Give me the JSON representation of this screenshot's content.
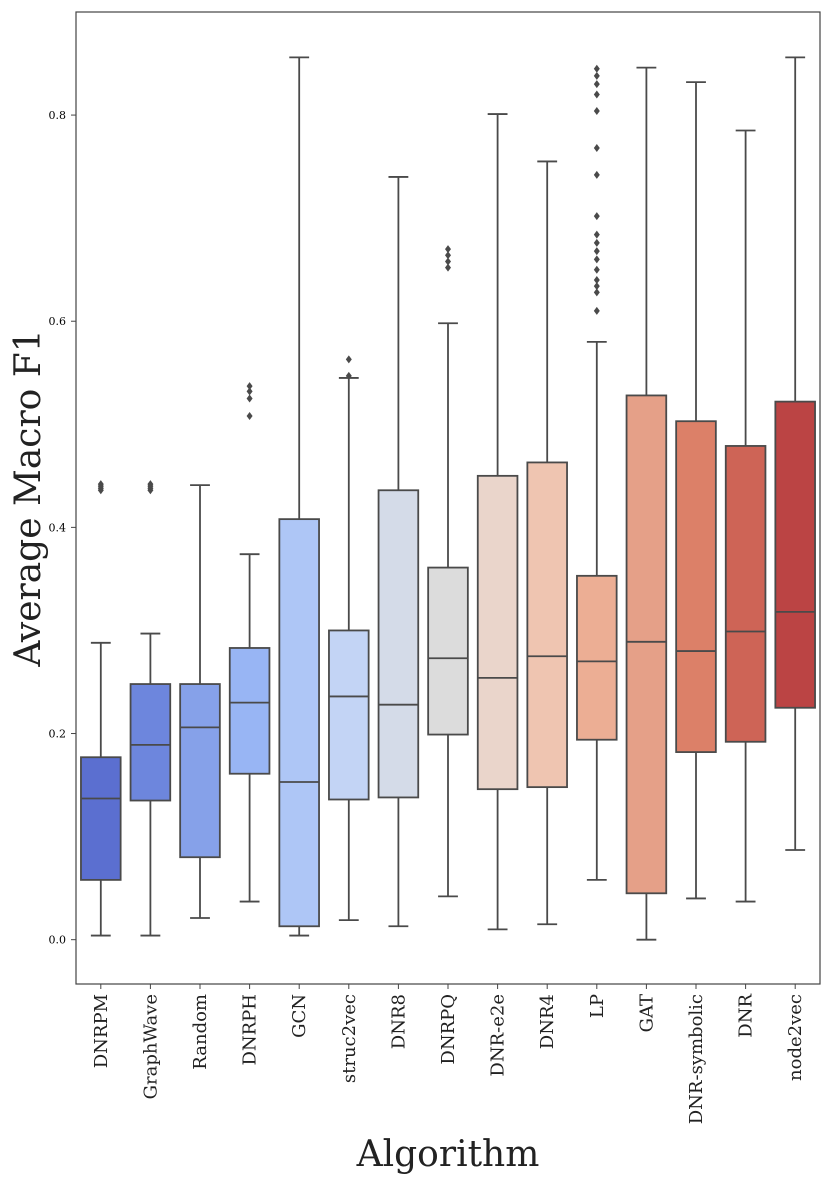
{
  "chart_data": {
    "type": "boxplot",
    "title": "",
    "xlabel": "Algorithm",
    "ylabel": "Average Macro F1",
    "ylim": [
      -0.043,
      0.9
    ],
    "yticks": [
      0.0,
      0.2,
      0.4,
      0.6,
      0.8
    ],
    "ytick_labels": [
      "0.0",
      "0.2",
      "0.4",
      "0.6",
      "0.8"
    ],
    "grid": false,
    "categories": [
      "DNRPM",
      "GraphWave",
      "Random",
      "DNRPH",
      "GCN",
      "struc2vec",
      "DNR8",
      "DNRPQ",
      "DNR-e2e",
      "DNR4",
      "LP",
      "GAT",
      "DNR-symbolic",
      "DNR",
      "node2vec"
    ],
    "colors": [
      "#5b6fd0",
      "#6d86dd",
      "#86a1e9",
      "#98b5f4",
      "#aec6f6",
      "#c3d4f5",
      "#d4dbe8",
      "#dcdcdc",
      "#ead5cb",
      "#efc5b1",
      "#ecae94",
      "#e5a088",
      "#dc8068",
      "#ce6456",
      "#bb4444"
    ],
    "boxes": [
      {
        "name": "DNRPM",
        "whislo": 0.004,
        "q1": 0.058,
        "median": 0.137,
        "q3": 0.177,
        "whishi": 0.288,
        "fliers": [
          0.436,
          0.438,
          0.44,
          0.442
        ]
      },
      {
        "name": "GraphWave",
        "whislo": 0.004,
        "q1": 0.135,
        "median": 0.189,
        "q3": 0.248,
        "whishi": 0.297,
        "fliers": [
          0.436,
          0.438,
          0.44,
          0.442
        ]
      },
      {
        "name": "Random",
        "whislo": 0.021,
        "q1": 0.08,
        "median": 0.206,
        "q3": 0.248,
        "whishi": 0.441,
        "fliers": []
      },
      {
        "name": "DNRPH",
        "whislo": 0.037,
        "q1": 0.161,
        "median": 0.23,
        "q3": 0.283,
        "whishi": 0.374,
        "fliers": [
          0.508,
          0.525,
          0.532,
          0.537
        ]
      },
      {
        "name": "GCN",
        "whislo": 0.004,
        "q1": 0.013,
        "median": 0.153,
        "q3": 0.408,
        "whishi": 0.856,
        "fliers": []
      },
      {
        "name": "struc2vec",
        "whislo": 0.019,
        "q1": 0.136,
        "median": 0.236,
        "q3": 0.3,
        "whishi": 0.545,
        "fliers": [
          0.547,
          0.563
        ]
      },
      {
        "name": "DNR8",
        "whislo": 0.013,
        "q1": 0.138,
        "median": 0.228,
        "q3": 0.436,
        "whishi": 0.74,
        "fliers": []
      },
      {
        "name": "DNRPQ",
        "whislo": 0.042,
        "q1": 0.199,
        "median": 0.273,
        "q3": 0.361,
        "whishi": 0.598,
        "fliers": [
          0.652,
          0.658,
          0.664,
          0.67
        ]
      },
      {
        "name": "DNR-e2e",
        "whislo": 0.01,
        "q1": 0.146,
        "median": 0.254,
        "q3": 0.45,
        "whishi": 0.801,
        "fliers": []
      },
      {
        "name": "DNR4",
        "whislo": 0.015,
        "q1": 0.148,
        "median": 0.275,
        "q3": 0.463,
        "whishi": 0.755,
        "fliers": []
      },
      {
        "name": "LP",
        "whislo": 0.058,
        "q1": 0.194,
        "median": 0.27,
        "q3": 0.353,
        "whishi": 0.58,
        "fliers": [
          0.61,
          0.628,
          0.634,
          0.64,
          0.65,
          0.66,
          0.668,
          0.676,
          0.684,
          0.702,
          0.742,
          0.768,
          0.804,
          0.82,
          0.83,
          0.838,
          0.845
        ]
      },
      {
        "name": "GAT",
        "whislo": 0.0,
        "q1": 0.045,
        "median": 0.289,
        "q3": 0.528,
        "whishi": 0.846,
        "fliers": []
      },
      {
        "name": "DNR-symbolic",
        "whislo": 0.04,
        "q1": 0.182,
        "median": 0.28,
        "q3": 0.503,
        "whishi": 0.832,
        "fliers": []
      },
      {
        "name": "DNR",
        "whislo": 0.037,
        "q1": 0.192,
        "median": 0.299,
        "q3": 0.479,
        "whishi": 0.785,
        "fliers": []
      },
      {
        "name": "node2vec",
        "whislo": 0.087,
        "q1": 0.225,
        "median": 0.318,
        "q3": 0.522,
        "whishi": 0.856,
        "fliers": []
      }
    ]
  }
}
